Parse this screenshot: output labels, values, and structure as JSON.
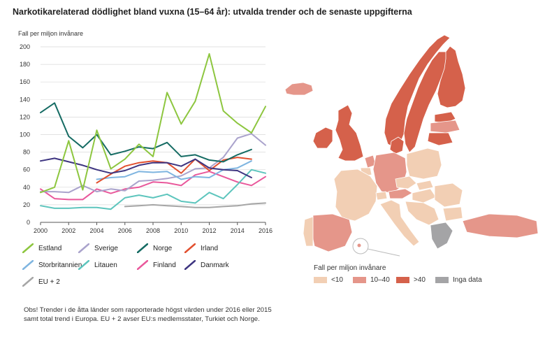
{
  "title": "Narkotikarelaterad dödlighet bland vuxna (15–64 år): utvalda trender och de senaste uppgifterna",
  "note": "Obs! Trender i de åtta länder som rapporterade högst värden under 2016 eller 2015 samt total trend i Europa. EU + 2 avser EU:s medlemsstater, Turkiet och Norge.",
  "chart_data": {
    "type": "line",
    "ylabel": "Fall per miljon invånare",
    "xlabel": "",
    "ylim": [
      0,
      200
    ],
    "xlim": [
      2000,
      2016
    ],
    "y_ticks": [
      0,
      20,
      40,
      60,
      80,
      100,
      120,
      140,
      160,
      180,
      200
    ],
    "x_ticks": [
      2000,
      2002,
      2004,
      2006,
      2008,
      2010,
      2012,
      2014,
      2016
    ],
    "grid": true,
    "series": [
      {
        "name": "Estland",
        "color": "#8dc63f",
        "x": [
          2000,
          2001,
          2002,
          2003,
          2004,
          2005,
          2006,
          2007,
          2008,
          2009,
          2010,
          2011,
          2012,
          2013,
          2014,
          2015,
          2016
        ],
        "values": [
          34,
          40,
          93,
          37,
          105,
          61,
          72,
          89,
          75,
          148,
          112,
          138,
          192,
          127,
          113,
          102,
          132
        ]
      },
      {
        "name": "Sverige",
        "color": "#aaa3cc",
        "x": [
          2000,
          2001,
          2002,
          2003,
          2004,
          2005,
          2006,
          2007,
          2008,
          2009,
          2010,
          2011,
          2012,
          2013,
          2014,
          2015,
          2016
        ],
        "values": [
          35,
          35,
          34,
          42,
          35,
          38,
          36,
          47,
          48,
          50,
          53,
          61,
          62,
          74,
          96,
          101,
          88
        ]
      },
      {
        "name": "Norge",
        "color": "#156b63",
        "x": [
          2000,
          2001,
          2002,
          2003,
          2004,
          2005,
          2006,
          2007,
          2008,
          2009,
          2010,
          2011,
          2012,
          2013,
          2014,
          2015
        ],
        "values": [
          125,
          136,
          98,
          85,
          100,
          77,
          81,
          86,
          84,
          91,
          75,
          77,
          71,
          69,
          77,
          83
        ]
      },
      {
        "name": "Irland",
        "color": "#e2502f",
        "x": [
          2004,
          2005,
          2006,
          2007,
          2008,
          2009,
          2010,
          2011,
          2012,
          2013,
          2014,
          2015
        ],
        "values": [
          45,
          55,
          64,
          68,
          70,
          68,
          56,
          72,
          59,
          71,
          74,
          72
        ]
      },
      {
        "name": "Storbritannien",
        "color": "#7fb5e0",
        "x": [
          2004,
          2005,
          2006,
          2007,
          2008,
          2009,
          2010,
          2011,
          2012,
          2013,
          2014,
          2015
        ],
        "values": [
          49,
          51,
          52,
          58,
          57,
          58,
          49,
          52,
          51,
          60,
          62,
          70
        ]
      },
      {
        "name": "Litauen",
        "color": "#5dc5bd",
        "x": [
          2000,
          2001,
          2002,
          2003,
          2004,
          2005,
          2006,
          2007,
          2008,
          2009,
          2010,
          2011,
          2012,
          2013,
          2014,
          2015,
          2016
        ],
        "values": [
          19,
          16,
          16,
          17,
          17,
          15,
          28,
          31,
          28,
          32,
          24,
          22,
          34,
          27,
          43,
          60,
          56
        ]
      },
      {
        "name": "Finland",
        "color": "#e9589b",
        "x": [
          2000,
          2001,
          2002,
          2003,
          2004,
          2005,
          2006,
          2007,
          2008,
          2009,
          2010,
          2011,
          2012,
          2013,
          2014,
          2015,
          2016
        ],
        "values": [
          38,
          27,
          26,
          26,
          38,
          33,
          38,
          40,
          46,
          45,
          42,
          54,
          58,
          52,
          46,
          42,
          52
        ]
      },
      {
        "name": "Danmark",
        "color": "#3d3480",
        "x": [
          2000,
          2001,
          2002,
          2003,
          2004,
          2005,
          2006,
          2007,
          2008,
          2009,
          2010,
          2011,
          2012,
          2013,
          2014,
          2015
        ],
        "values": [
          70,
          73,
          69,
          65,
          60,
          56,
          59,
          65,
          68,
          68,
          64,
          72,
          62,
          60,
          59,
          51
        ]
      },
      {
        "name": "EU + 2",
        "color": "#a6a6a6",
        "x": [
          2006,
          2007,
          2008,
          2009,
          2010,
          2011,
          2012,
          2013,
          2014,
          2015,
          2016
        ],
        "values": [
          18,
          19,
          20,
          19,
          18,
          17,
          17,
          18,
          19,
          21,
          22
        ]
      }
    ]
  },
  "map": {
    "legend_title": "Fall per miljon invånare",
    "categories": [
      {
        "label": "<10",
        "color": "#f2cfb4"
      },
      {
        "label": "10–40",
        "color": "#e5968a"
      },
      {
        "label": ">40",
        "color": "#d5614b"
      },
      {
        "label": "Inga data",
        "color": "#a4a4a6"
      }
    ]
  }
}
